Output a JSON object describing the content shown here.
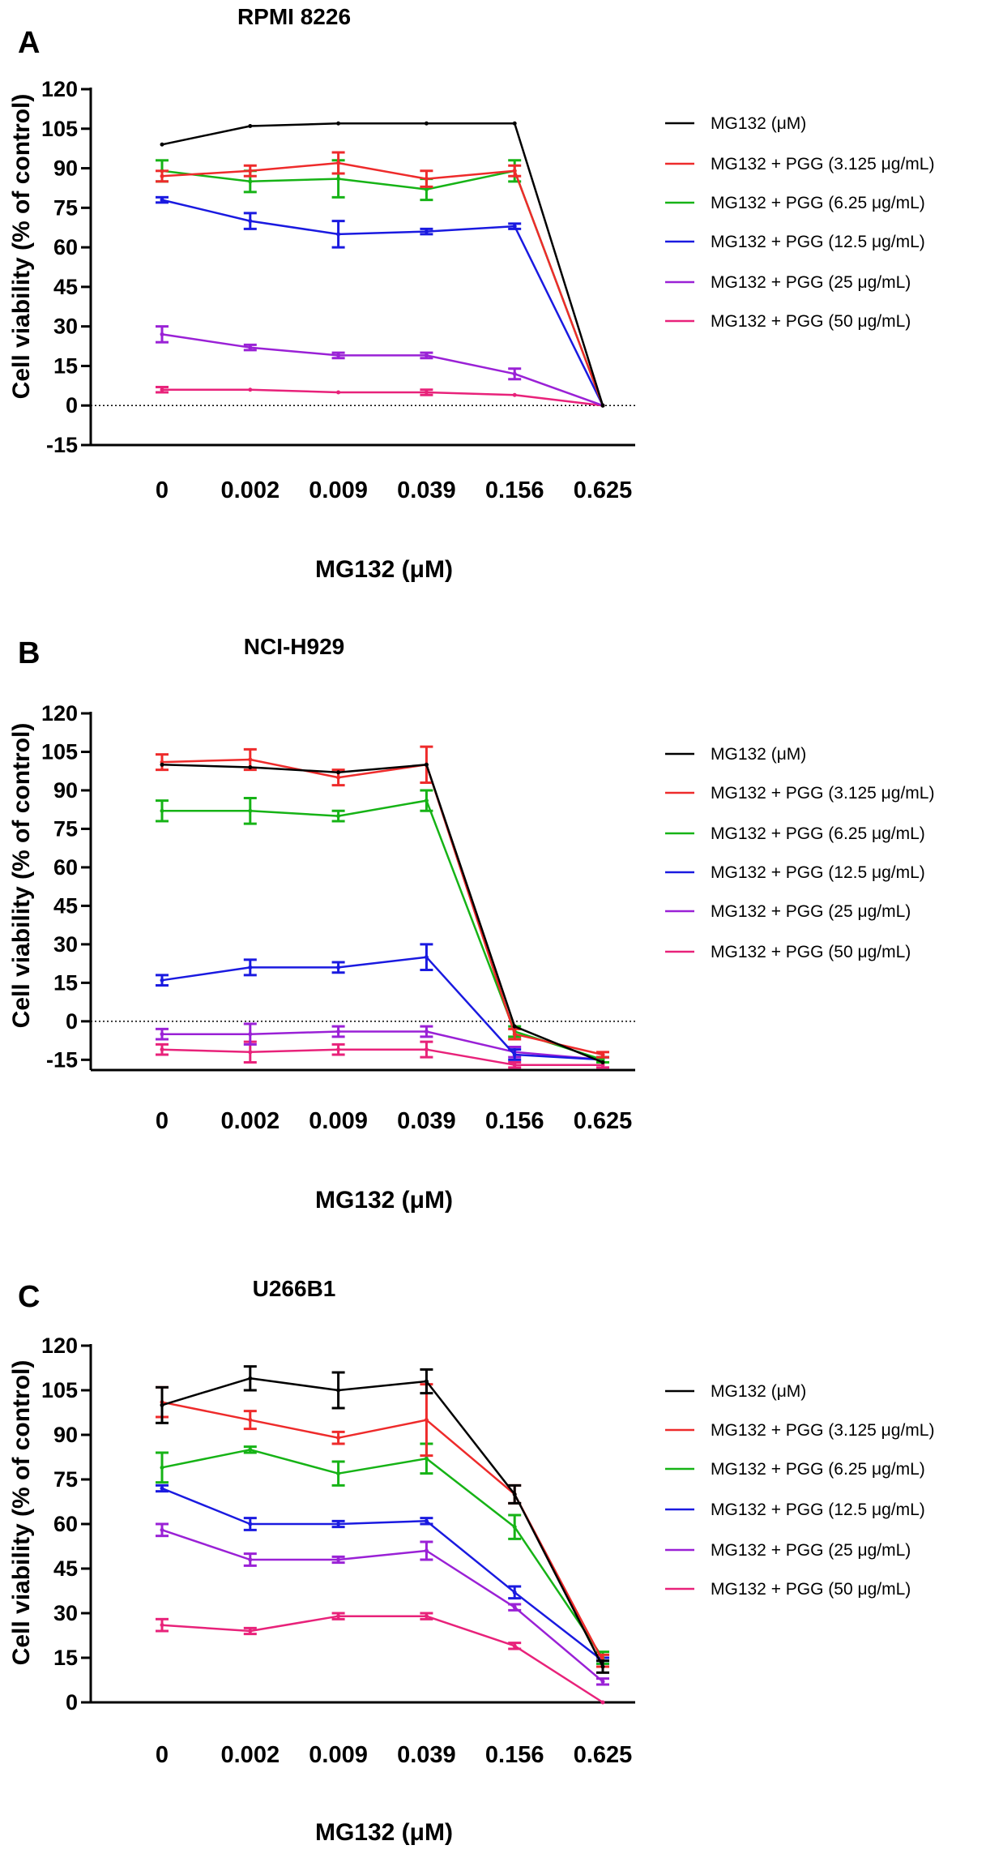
{
  "figure": {
    "legend_labels": [
      "MG132 (μM)",
      "MG132 + PGG (3.125 μg/mL)",
      "MG132 + PGG (6.25 μg/mL)",
      "MG132 + PGG (12.5 μg/mL)",
      "MG132 + PGG (25 μg/mL)",
      "MG132 + PGG (50 μg/mL)"
    ],
    "series_colors": [
      "#000000",
      "#ee2b2b",
      "#16b316",
      "#1a1ae0",
      "#9a21d6",
      "#e8227a"
    ]
  },
  "chart_data": [
    {
      "panel": "A",
      "type": "line",
      "title": "RPMI 8226",
      "xlabel": "MG132 (μM)",
      "ylabel": "Cell viability (% of control)",
      "categories": [
        "0",
        "0.002",
        "0.009",
        "0.039",
        "0.156",
        "0.625"
      ],
      "yticks": [
        120,
        105,
        90,
        75,
        60,
        45,
        30,
        15,
        0,
        -15
      ],
      "ylim": [
        -15,
        120
      ],
      "zero_line": true,
      "series": [
        {
          "name": "MG132 (μM)",
          "values": [
            99,
            106,
            107,
            107,
            107,
            0
          ],
          "errors": [
            0,
            0,
            0,
            0,
            0,
            0
          ]
        },
        {
          "name": "MG132 + PGG (3.125 μg/mL)",
          "values": [
            87,
            89,
            92,
            86,
            89,
            0
          ],
          "errors": [
            2,
            2,
            4,
            3,
            2,
            0
          ]
        },
        {
          "name": "MG132 + PGG (6.25 μg/mL)",
          "values": [
            89,
            85,
            86,
            82,
            89,
            0
          ],
          "errors": [
            4,
            4,
            7,
            4,
            4,
            0
          ]
        },
        {
          "name": "MG132 + PGG (12.5 μg/mL)",
          "values": [
            78,
            70,
            65,
            66,
            68,
            0
          ],
          "errors": [
            1,
            3,
            5,
            1,
            1,
            0
          ]
        },
        {
          "name": "MG132 + PGG (25 μg/mL)",
          "values": [
            27,
            22,
            19,
            19,
            12,
            0
          ],
          "errors": [
            3,
            1,
            1,
            1,
            2,
            0
          ]
        },
        {
          "name": "MG132 + PGG (50 μg/mL)",
          "values": [
            6,
            6,
            5,
            5,
            4,
            0
          ],
          "errors": [
            1,
            0,
            0,
            1,
            0,
            0
          ]
        }
      ]
    },
    {
      "panel": "B",
      "type": "line",
      "title": "NCI-H929",
      "xlabel": "MG132 (μM)",
      "ylabel": "Cell viability (% of control)",
      "categories": [
        "0",
        "0.002",
        "0.009",
        "0.039",
        "0.156",
        "0.625"
      ],
      "yticks": [
        120,
        105,
        90,
        75,
        60,
        45,
        30,
        15,
        0,
        -15
      ],
      "ylim": [
        -19,
        120
      ],
      "zero_line": true,
      "series": [
        {
          "name": "MG132 (μM)",
          "values": [
            100,
            99,
            97,
            100,
            -2,
            -16
          ],
          "errors": [
            0,
            0,
            0,
            0,
            0,
            0
          ]
        },
        {
          "name": "MG132 + PGG (3.125 μg/mL)",
          "values": [
            101,
            102,
            95,
            100,
            -5,
            -13
          ],
          "errors": [
            3,
            4,
            3,
            7,
            2,
            1
          ]
        },
        {
          "name": "MG132 + PGG (6.25 μg/mL)",
          "values": [
            82,
            82,
            80,
            86,
            -4,
            -15
          ],
          "errors": [
            4,
            5,
            2,
            4,
            2,
            1
          ]
        },
        {
          "name": "MG132 + PGG (12.5 μg/mL)",
          "values": [
            16,
            21,
            21,
            25,
            -13,
            -15
          ],
          "errors": [
            2,
            3,
            2,
            5,
            2,
            1
          ]
        },
        {
          "name": "MG132 + PGG (25 μg/mL)",
          "values": [
            -5,
            -5,
            -4,
            -4,
            -12,
            -15
          ],
          "errors": [
            2,
            4,
            2,
            2,
            2,
            1
          ]
        },
        {
          "name": "MG132 + PGG (50 μg/mL)",
          "values": [
            -11,
            -12,
            -11,
            -11,
            -17,
            -17
          ],
          "errors": [
            2,
            4,
            2,
            3,
            1,
            1
          ]
        }
      ]
    },
    {
      "panel": "C",
      "type": "line",
      "title": "U266B1",
      "xlabel": "MG132 (μM)",
      "ylabel": "Cell viability (% of control)",
      "categories": [
        "0",
        "0.002",
        "0.009",
        "0.039",
        "0.156",
        "0.625"
      ],
      "yticks": [
        120,
        105,
        90,
        75,
        60,
        45,
        30,
        15,
        0
      ],
      "ylim": [
        0,
        120
      ],
      "zero_line": false,
      "series": [
        {
          "name": "MG132 (μM)",
          "values": [
            100,
            109,
            105,
            108,
            70,
            12
          ],
          "errors": [
            6,
            4,
            6,
            4,
            3,
            2
          ]
        },
        {
          "name": "MG132 + PGG (3.125 μg/mL)",
          "values": [
            101,
            95,
            89,
            95,
            70,
            14
          ],
          "errors": [
            5,
            3,
            2,
            12,
            3,
            2
          ]
        },
        {
          "name": "MG132 + PGG (6.25 μg/mL)",
          "values": [
            79,
            85,
            77,
            82,
            59,
            15
          ],
          "errors": [
            5,
            1,
            4,
            5,
            4,
            2
          ]
        },
        {
          "name": "MG132 + PGG (12.5 μg/mL)",
          "values": [
            72,
            60,
            60,
            61,
            37,
            14
          ],
          "errors": [
            1,
            2,
            1,
            1,
            2,
            1
          ]
        },
        {
          "name": "MG132 + PGG (25 μg/mL)",
          "values": [
            58,
            48,
            48,
            51,
            32,
            7
          ],
          "errors": [
            2,
            2,
            1,
            3,
            1,
            1
          ]
        },
        {
          "name": "MG132 + PGG (50 μg/mL)",
          "values": [
            26,
            24,
            29,
            29,
            19,
            0
          ],
          "errors": [
            2,
            1,
            1,
            1,
            1,
            0
          ]
        }
      ]
    }
  ]
}
